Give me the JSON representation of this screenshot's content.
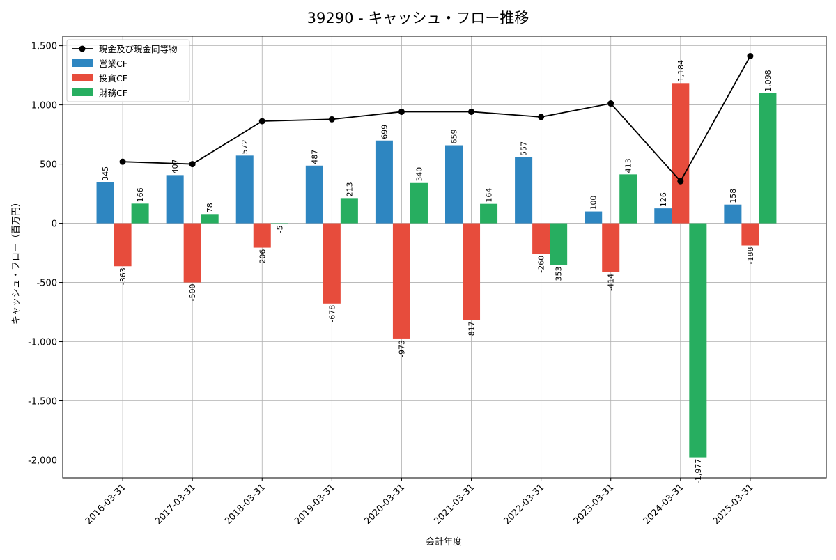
{
  "chart_data": {
    "type": "bar",
    "title": "39290 - キャッシュ・フロー推移",
    "xlabel": "会計年度",
    "ylabel": "キャッシュ・フロー（百万円）",
    "ylim": [
      -2150,
      1580
    ],
    "yticks": [
      1500,
      1000,
      500,
      0,
      -500,
      -1000,
      -1500,
      -2000
    ],
    "ytick_labels": [
      "1,500",
      "1,000",
      "500",
      "0",
      "-500",
      "-1,000",
      "-1,500",
      "-2,000"
    ],
    "grid": true,
    "legend_position": "top-left",
    "categories": [
      "2016-03-31",
      "2017-03-31",
      "2018-03-31",
      "2019-03-31",
      "2020-03-31",
      "2021-03-31",
      "2022-03-31",
      "2023-03-31",
      "2024-03-31",
      "2025-03-31"
    ],
    "series": [
      {
        "name": "営業CF",
        "kind": "bar",
        "color": "#2e86c1",
        "values": [
          345,
          407,
          572,
          487,
          699,
          659,
          557,
          100,
          126,
          158
        ],
        "labels": [
          "345",
          "407",
          "572",
          "487",
          "699",
          "659",
          "557",
          "100",
          "126",
          "158"
        ]
      },
      {
        "name": "投資CF",
        "kind": "bar",
        "color": "#e74c3c",
        "values": [
          -363,
          -500,
          -206,
          -678,
          -973,
          -817,
          -260,
          -414,
          1184,
          -188
        ],
        "labels": [
          "-363",
          "-500",
          "-206",
          "-678",
          "-973",
          "-817",
          "-260",
          "-414",
          "1,184",
          "-188"
        ]
      },
      {
        "name": "財務CF",
        "kind": "bar",
        "color": "#27ae60",
        "values": [
          166,
          78,
          -5,
          213,
          340,
          164,
          -353,
          413,
          -1977,
          1098
        ],
        "labels": [
          "166",
          "78",
          "-5",
          "213",
          "340",
          "164",
          "-353",
          "413",
          "-1,977",
          "1,098"
        ]
      },
      {
        "name": "現金及び現金同等物",
        "kind": "line",
        "color": "#000000",
        "values": [
          520,
          500,
          862,
          878,
          942,
          942,
          898,
          1012,
          355,
          1412
        ]
      }
    ]
  }
}
